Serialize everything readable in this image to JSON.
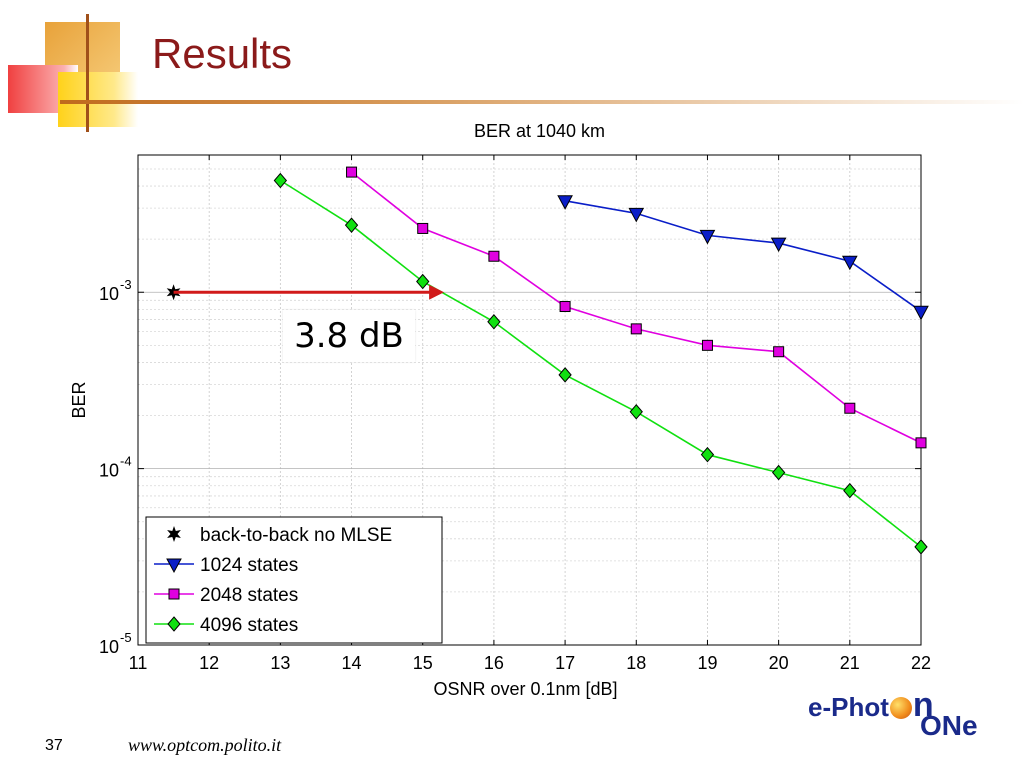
{
  "slide": {
    "title": "Results",
    "page_number": "37",
    "url": "www.optcom.polito.it",
    "callout": "3.8 dB",
    "logo": {
      "line1_prefix": "e-Phot",
      "line1_suffix": "n",
      "line2": "ONe"
    }
  },
  "colors": {
    "title": "#8b1a1a",
    "arrow": "#d11a1a",
    "series_1024": "#0a1ec8",
    "series_2048": "#e000e0",
    "series_4096": "#10e010"
  },
  "chart_data": {
    "type": "line",
    "title": "BER at 1040 km",
    "xlabel": "OSNR over 0.1nm [dB]",
    "ylabel": "BER",
    "xlim": [
      11,
      22
    ],
    "ylim": [
      1e-05,
      0.006
    ],
    "yscale": "log",
    "grid": true,
    "legend_position": "bottom-left",
    "x_ticks": [
      "11",
      "12",
      "13",
      "14",
      "15",
      "16",
      "17",
      "18",
      "19",
      "20",
      "21",
      "22"
    ],
    "y_ticks": [
      {
        "base": "10",
        "exp": "-3",
        "value": 0.001
      },
      {
        "base": "10",
        "exp": "-4",
        "value": 0.0001
      },
      {
        "base": "10",
        "exp": "-5",
        "value": 1e-05
      }
    ],
    "series": [
      {
        "name": "back-to-back no MLSE",
        "marker": "star",
        "color": "#000000",
        "x": [
          11.5
        ],
        "y": [
          0.001
        ]
      },
      {
        "name": "1024 states",
        "marker": "triangle-down",
        "color": "#0a1ec8",
        "x": [
          17,
          18,
          19,
          20,
          21,
          22
        ],
        "y": [
          0.0033,
          0.0028,
          0.0021,
          0.0019,
          0.0015,
          0.00078
        ]
      },
      {
        "name": "2048 states",
        "marker": "square",
        "color": "#e000e0",
        "x": [
          14,
          15,
          16,
          17,
          18,
          19,
          20,
          21,
          22
        ],
        "y": [
          0.0048,
          0.0023,
          0.0016,
          0.00083,
          0.00062,
          0.0005,
          0.00046,
          0.00022,
          0.00014
        ]
      },
      {
        "name": "4096 states",
        "marker": "diamond",
        "color": "#10e010",
        "x": [
          13,
          14,
          15,
          16,
          17,
          18,
          19,
          20,
          21,
          22
        ],
        "y": [
          0.0043,
          0.0024,
          0.00115,
          0.00068,
          0.00034,
          0.00021,
          0.00012,
          9.5e-05,
          7.5e-05,
          3.6e-05
        ]
      }
    ],
    "annotations": [
      {
        "type": "arrow",
        "from_x": 11.5,
        "to_x": 15.3,
        "y": 0.001,
        "label": "3.8 dB"
      }
    ]
  }
}
